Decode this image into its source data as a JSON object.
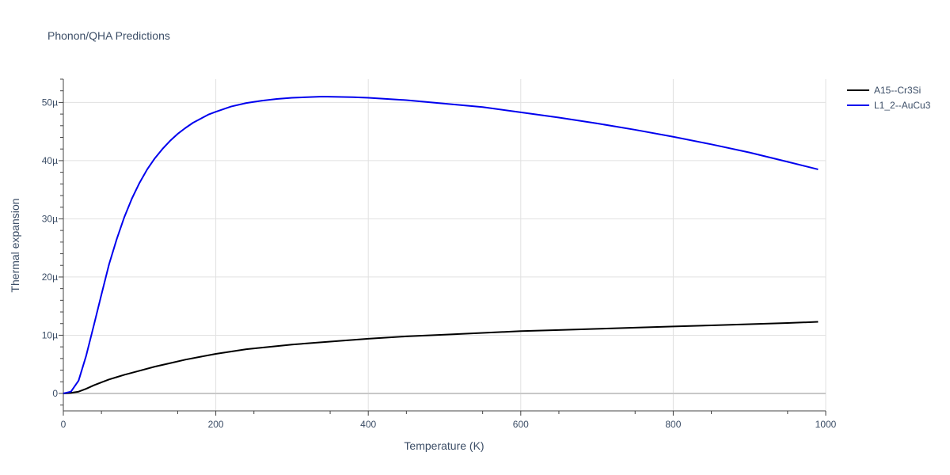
{
  "chart_data": {
    "type": "line",
    "title": "Phonon/QHA Predictions",
    "xlabel": "Temperature (K)",
    "ylabel": "Thermal expansion",
    "xlim": [
      0,
      1000
    ],
    "ylim": [
      -3,
      54
    ],
    "x_ticks": [
      0,
      200,
      400,
      600,
      800,
      1000
    ],
    "x_tick_labels": [
      "0",
      "200",
      "400",
      "600",
      "800",
      "1000"
    ],
    "y_ticks": [
      0,
      10,
      20,
      30,
      40,
      50
    ],
    "y_tick_labels": [
      "0",
      "10µ",
      "20µ",
      "30µ",
      "40µ",
      "50µ"
    ],
    "grid": true,
    "legend_position": "top-right",
    "series": [
      {
        "name": "A15--Cr3Si",
        "color": "#000000",
        "x": [
          0,
          10,
          20,
          30,
          40,
          50,
          60,
          70,
          80,
          100,
          120,
          140,
          160,
          180,
          200,
          240,
          300,
          350,
          400,
          450,
          500,
          550,
          600,
          650,
          700,
          750,
          800,
          850,
          900,
          950,
          990
        ],
        "y": [
          0,
          0.1,
          0.3,
          0.8,
          1.4,
          1.9,
          2.4,
          2.8,
          3.2,
          3.9,
          4.6,
          5.2,
          5.8,
          6.3,
          6.8,
          7.6,
          8.4,
          8.9,
          9.4,
          9.8,
          10.1,
          10.4,
          10.7,
          10.9,
          11.1,
          11.3,
          11.5,
          11.7,
          11.9,
          12.1,
          12.3
        ]
      },
      {
        "name": "L1_2--AuCu3",
        "color": "#0000ee",
        "x": [
          0,
          10,
          20,
          30,
          40,
          50,
          60,
          70,
          80,
          90,
          100,
          110,
          120,
          130,
          140,
          150,
          160,
          170,
          180,
          190,
          200,
          220,
          240,
          260,
          280,
          300,
          340,
          380,
          400,
          450,
          500,
          550,
          600,
          650,
          700,
          750,
          800,
          850,
          900,
          950,
          990
        ],
        "y": [
          0,
          0.3,
          2.2,
          6.5,
          11.7,
          17.0,
          22.2,
          26.5,
          30.3,
          33.5,
          36.2,
          38.5,
          40.4,
          42.0,
          43.4,
          44.6,
          45.6,
          46.5,
          47.2,
          47.9,
          48.4,
          49.3,
          49.9,
          50.3,
          50.6,
          50.8,
          51.0,
          50.9,
          50.8,
          50.4,
          49.8,
          49.2,
          48.3,
          47.4,
          46.4,
          45.3,
          44.1,
          42.8,
          41.4,
          39.8,
          38.5
        ]
      }
    ]
  }
}
